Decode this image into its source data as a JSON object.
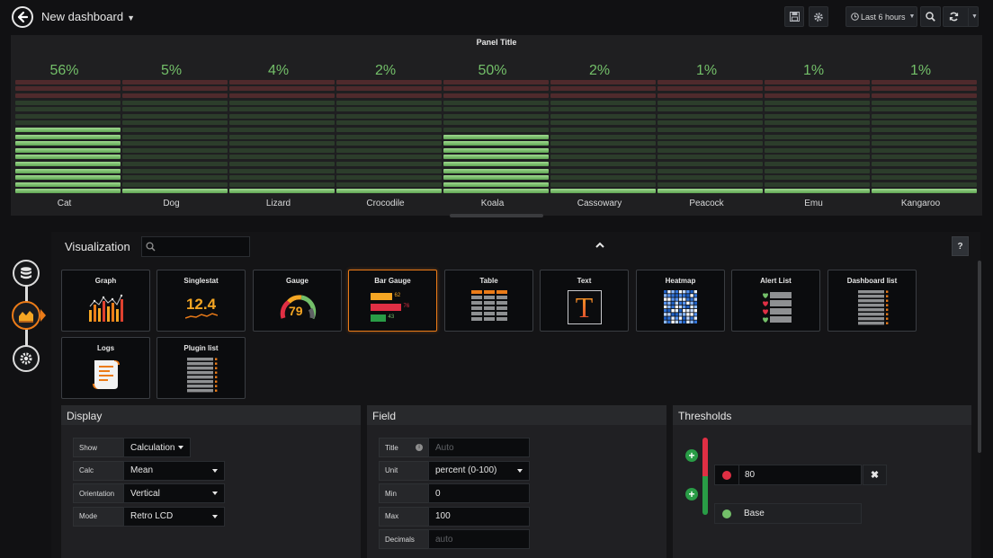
{
  "header": {
    "dashboard_title": "New dashboard",
    "time_range_label": "Last 6 hours",
    "buttons": [
      "save",
      "settings",
      "time-range",
      "zoom-out",
      "refresh",
      "refresh-interval"
    ]
  },
  "panel": {
    "title": "Panel Title",
    "accent_value_color": "#73bf69",
    "gauges": [
      {
        "name": "Cat",
        "value_label": "56%",
        "value": 56
      },
      {
        "name": "Dog",
        "value_label": "5%",
        "value": 5
      },
      {
        "name": "Lizard",
        "value_label": "4%",
        "value": 4
      },
      {
        "name": "Crocodile",
        "value_label": "2%",
        "value": 2
      },
      {
        "name": "Koala",
        "value_label": "50%",
        "value": 50
      },
      {
        "name": "Cassowary",
        "value_label": "2%",
        "value": 2
      },
      {
        "name": "Peacock",
        "value_label": "1%",
        "value": 1
      },
      {
        "name": "Emu",
        "value_label": "1%",
        "value": 1
      },
      {
        "name": "Kangaroo",
        "value_label": "1%",
        "value": 1
      }
    ]
  },
  "editor": {
    "section_title": "Visualization",
    "search_placeholder": "",
    "help_label": "?",
    "visualizations": [
      {
        "name": "Graph",
        "icon": "graph-icon"
      },
      {
        "name": "Singlestat",
        "icon": "singlestat-icon",
        "sample": "12.4"
      },
      {
        "name": "Gauge",
        "icon": "gauge-icon",
        "sample": "79"
      },
      {
        "name": "Bar Gauge",
        "icon": "bar-gauge-icon",
        "selected": true,
        "samples": [
          "62",
          "76",
          "43"
        ]
      },
      {
        "name": "Table",
        "icon": "table-icon"
      },
      {
        "name": "Text",
        "icon": "text-icon",
        "sample": "T"
      },
      {
        "name": "Heatmap",
        "icon": "heatmap-icon"
      },
      {
        "name": "Alert List",
        "icon": "alert-list-icon"
      },
      {
        "name": "Dashboard list",
        "icon": "dashboard-list-icon"
      },
      {
        "name": "Logs",
        "icon": "logs-icon"
      },
      {
        "name": "Plugin list",
        "icon": "plugin-list-icon"
      }
    ],
    "display": {
      "title": "Display",
      "rows": [
        {
          "label": "Show",
          "value": "Calculation"
        },
        {
          "label": "Calc",
          "value": "Mean"
        },
        {
          "label": "Orientation",
          "value": "Vertical"
        },
        {
          "label": "Mode",
          "value": "Retro LCD"
        }
      ]
    },
    "field": {
      "title": "Field",
      "rows": [
        {
          "label": "Title",
          "value": "",
          "placeholder": "Auto"
        },
        {
          "label": "Unit",
          "value": "percent (0-100)"
        },
        {
          "label": "Min",
          "value": "0"
        },
        {
          "label": "Max",
          "value": "100"
        },
        {
          "label": "Decimals",
          "value": "",
          "placeholder": "auto"
        }
      ]
    },
    "thresholds": {
      "title": "Thresholds",
      "items": [
        {
          "value": "80",
          "color": "#e02f44"
        },
        {
          "value": "Base",
          "color": "#73bf69"
        }
      ]
    }
  }
}
